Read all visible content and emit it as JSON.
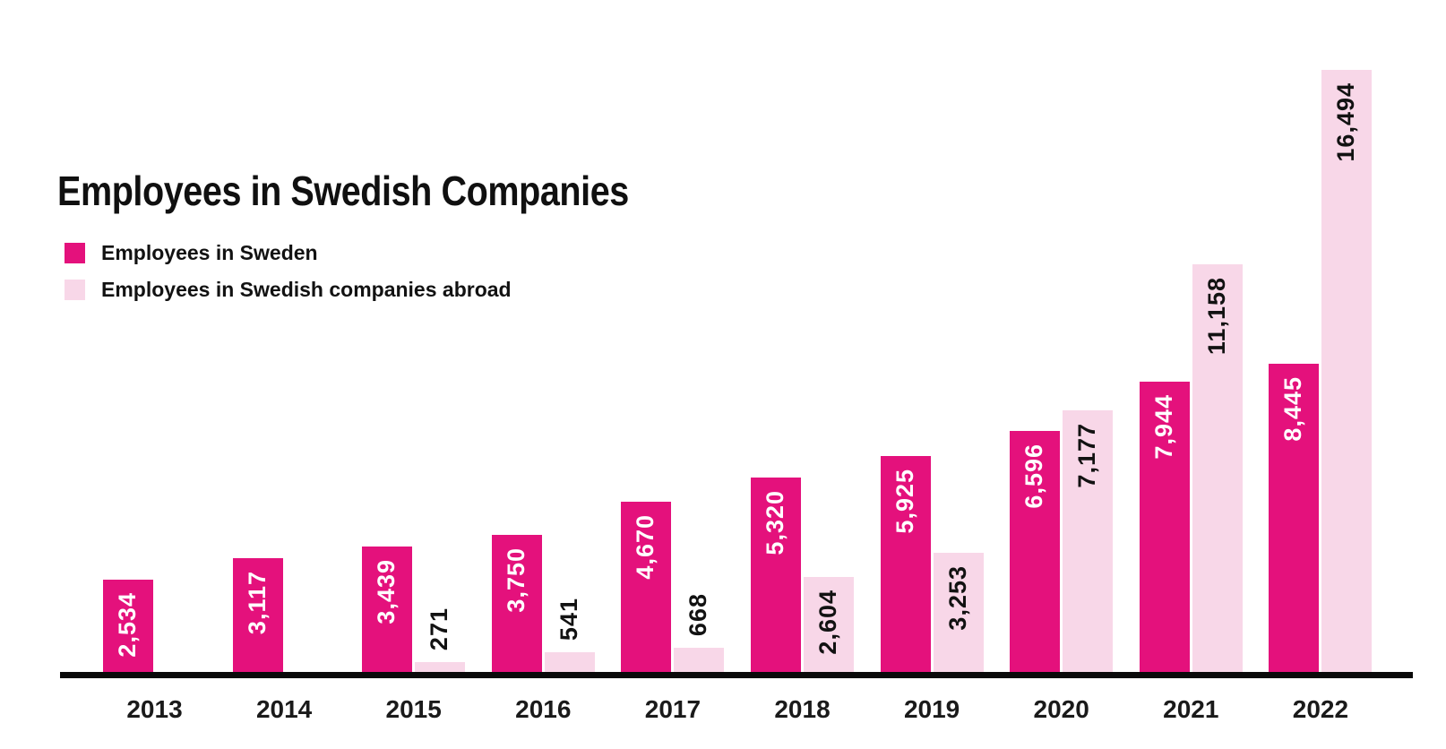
{
  "title": "Employees in Swedish Companies",
  "legend": [
    {
      "label": "Employees in Sweden",
      "color": "#E4117C"
    },
    {
      "label": "Employees in Swedish companies abroad",
      "color": "#F8D7E8"
    }
  ],
  "chart_data": {
    "type": "bar",
    "title": "Employees in Swedish Companies",
    "categories": [
      "2013",
      "2014",
      "2015",
      "2016",
      "2017",
      "2018",
      "2019",
      "2020",
      "2021",
      "2022"
    ],
    "series": [
      {
        "name": "Employees in Sweden",
        "key": "sweden",
        "color": "#E4117C",
        "label_color": "#ffffff",
        "values": [
          2534,
          3117,
          3439,
          3750,
          4670,
          5320,
          5925,
          6596,
          7944,
          8445
        ]
      },
      {
        "name": "Employees in Swedish companies abroad",
        "key": "abroad",
        "color": "#F8D7E8",
        "label_color": "#121212",
        "values": [
          null,
          null,
          271,
          541,
          668,
          2604,
          3253,
          7177,
          11158,
          16494
        ]
      }
    ],
    "ylim": [
      0,
      16494
    ],
    "xlabel": "",
    "ylabel": "",
    "grid": false,
    "legend_position": "top-left",
    "axis_color": "#0a0a0a",
    "value_label_format": "thousands-comma"
  }
}
